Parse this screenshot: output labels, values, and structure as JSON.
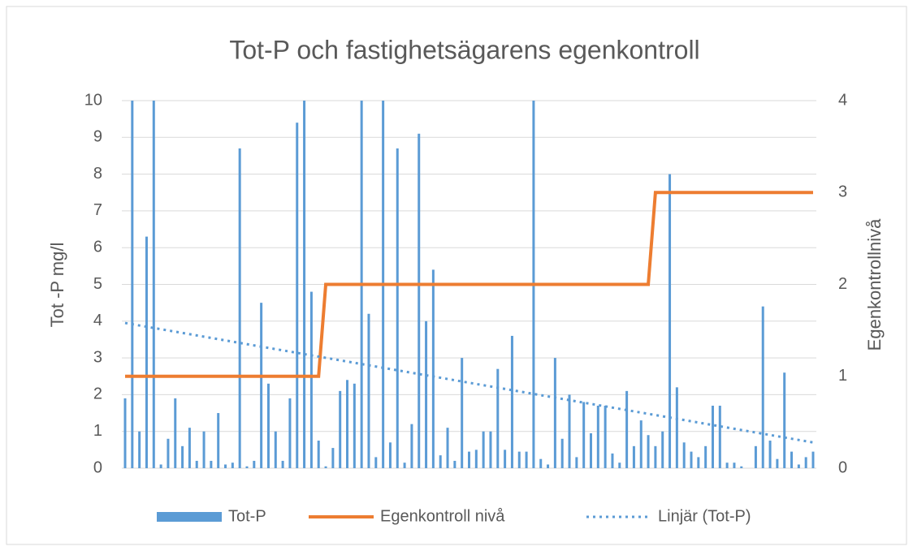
{
  "chart_data": {
    "type": "bar_line",
    "title": "Tot-P och fastighetsägarens egenkontroll",
    "y_label": "Tot -P mg/l",
    "y2_label": "Egenkontrollnivå",
    "ylim": [
      0,
      10
    ],
    "yticks": [
      0,
      1,
      2,
      3,
      4,
      5,
      6,
      7,
      8,
      9,
      10
    ],
    "y2lim": [
      0,
      4
    ],
    "y2ticks": [
      0,
      1,
      2,
      3,
      4
    ],
    "grid": true,
    "legend": "bottom",
    "series": [
      {
        "name": "Tot-P",
        "type": "bar",
        "color": "#5b9bd5",
        "values": [
          1.9,
          10,
          1.0,
          6.3,
          10,
          0.1,
          0.8,
          1.9,
          0.6,
          1.1,
          0.2,
          1.0,
          0.2,
          1.5,
          0.1,
          0.15,
          8.7,
          0.05,
          0.2,
          4.5,
          2.3,
          1.0,
          0.2,
          1.9,
          9.4,
          10,
          4.8,
          0.75,
          0.05,
          0.55,
          2.1,
          2.4,
          2.3,
          10,
          4.2,
          0.3,
          10,
          0.7,
          8.7,
          0.15,
          1.2,
          9.1,
          4.0,
          5.4,
          0.35,
          1.1,
          0.2,
          3.0,
          0.45,
          0.5,
          1.0,
          1.0,
          2.7,
          0.5,
          3.6,
          0.45,
          0.45,
          10,
          0.25,
          0.1,
          3.0,
          0.8,
          2.0,
          0.3,
          1.8,
          0.95,
          1.7,
          1.7,
          0.4,
          0.15,
          2.1,
          0.6,
          1.3,
          0.9,
          0.6,
          1.0,
          8.0,
          2.2,
          0.7,
          0.45,
          0.3,
          0.6,
          1.7,
          1.7,
          0.15,
          0.15,
          0.05,
          0,
          0.6,
          4.4,
          0.75,
          0.25,
          2.6,
          0.45,
          0.1,
          0.3,
          0.45
        ]
      },
      {
        "name": "Egenkontroll nivå",
        "type": "line",
        "axis": "y2",
        "color": "#ed7d31",
        "values": [
          1,
          1,
          1,
          1,
          1,
          1,
          1,
          1,
          1,
          1,
          1,
          1,
          1,
          1,
          1,
          1,
          1,
          1,
          1,
          1,
          1,
          1,
          1,
          1,
          1,
          1,
          1,
          1,
          2,
          2,
          2,
          2,
          2,
          2,
          2,
          2,
          2,
          2,
          2,
          2,
          2,
          2,
          2,
          2,
          2,
          2,
          2,
          2,
          2,
          2,
          2,
          2,
          2,
          2,
          2,
          2,
          2,
          2,
          2,
          2,
          2,
          2,
          2,
          2,
          2,
          2,
          2,
          2,
          2,
          2,
          2,
          2,
          2,
          2,
          3,
          3,
          3,
          3,
          3,
          3,
          3,
          3,
          3,
          3,
          3,
          3,
          3,
          3,
          3,
          3,
          3,
          3,
          3,
          3,
          3,
          3,
          3
        ]
      },
      {
        "name": "Linjär (Tot-P)",
        "type": "trend",
        "color": "#5b9bd5",
        "x": [
          0,
          96
        ],
        "values": [
          3.95,
          0.7
        ]
      }
    ]
  }
}
